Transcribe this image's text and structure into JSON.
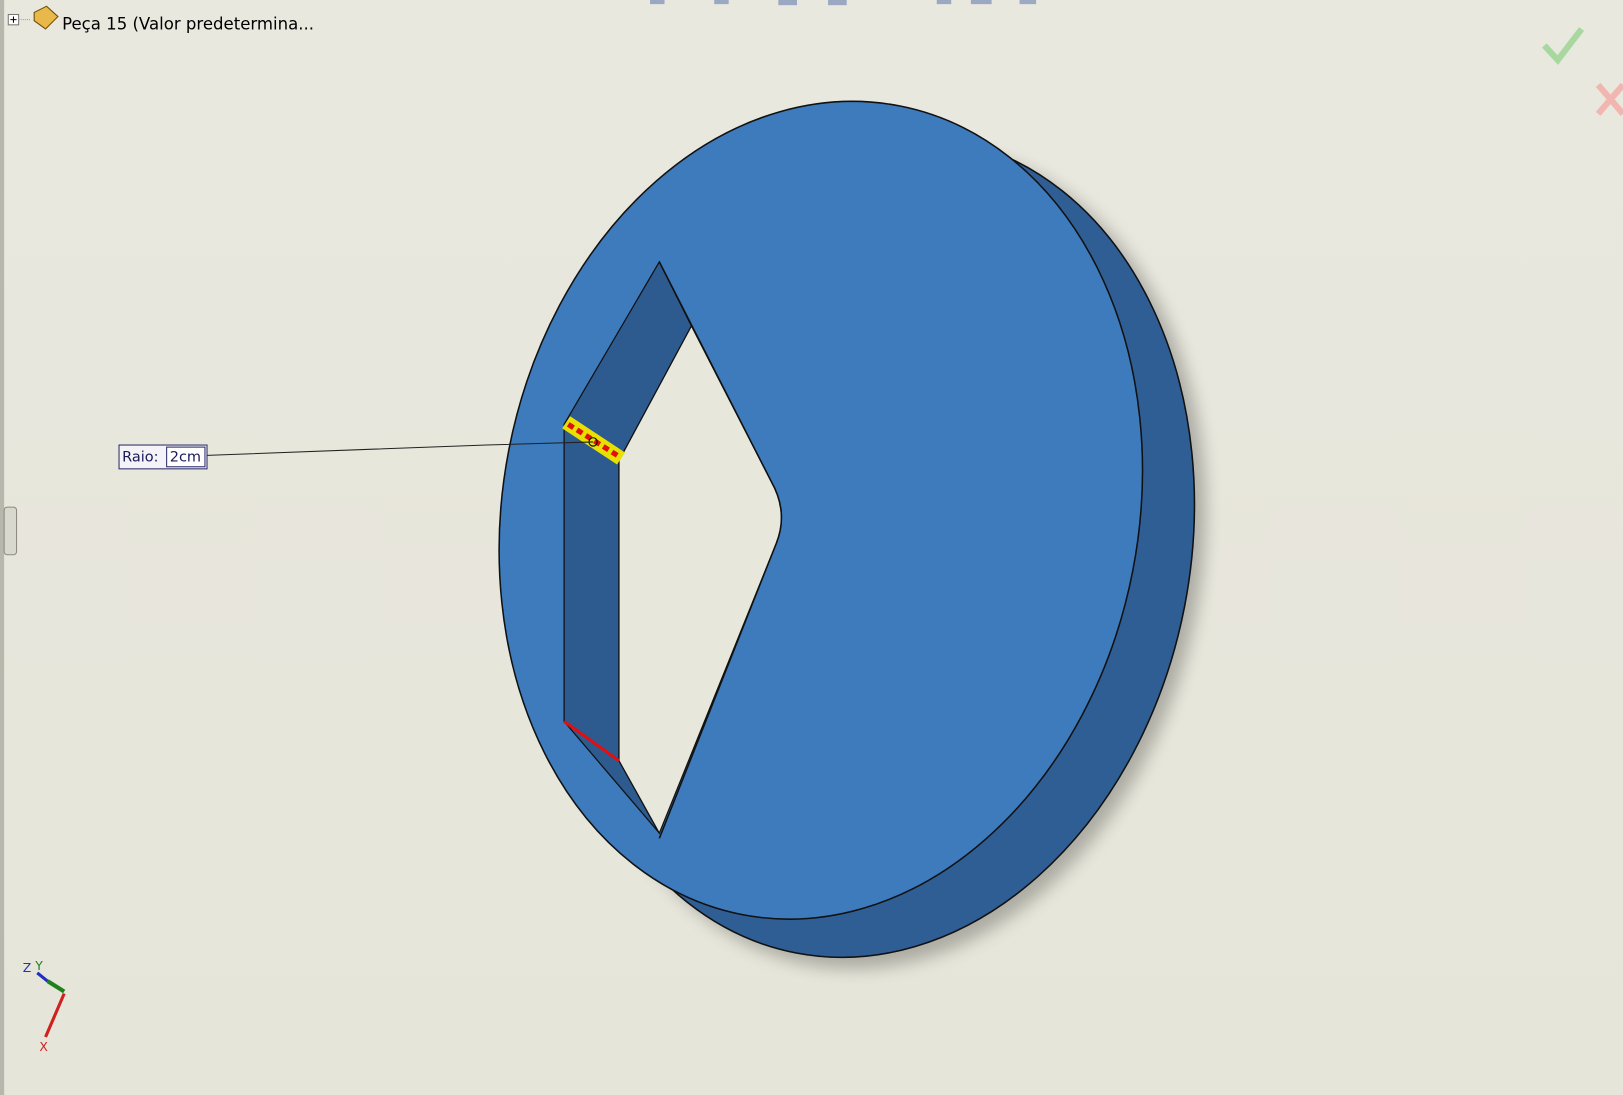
{
  "feature_tree": {
    "part": "Peça 15  (Valor predetermina..."
  },
  "dimension": {
    "label": "Raio:",
    "value": "2cm"
  },
  "triad": {
    "z": "Z",
    "y": "Y",
    "x": "X"
  }
}
